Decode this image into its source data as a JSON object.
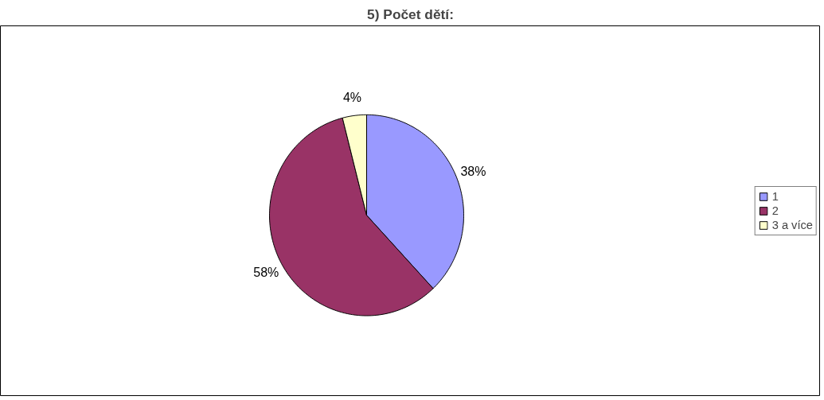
{
  "chart_data": {
    "type": "pie",
    "title": "5) Počet dětí:",
    "categories": [
      "1",
      "2",
      "3 a více"
    ],
    "values": [
      38,
      58,
      4
    ],
    "colors": [
      "#9999ff",
      "#993366",
      "#ffffcc"
    ],
    "value_labels": [
      "38%",
      "58%",
      "4%"
    ],
    "legend": "right"
  }
}
